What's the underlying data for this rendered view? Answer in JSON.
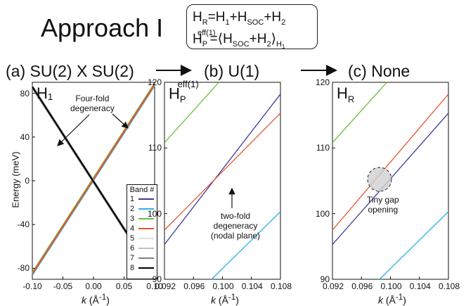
{
  "header": {
    "approach_label": "Approach I",
    "hr_equation": "H_R = H_1 + H_SOC + H_2",
    "hp_equation": "H_P^eff(1) = <H_SOC + H_2>_H1"
  },
  "flow_titles": [
    "(a) SU(2) X SU(2)",
    "(b) U(1)",
    "(c) None"
  ],
  "panels": {
    "a": {
      "label": "H₁",
      "annotation": "Four-fold\ndegeneracy",
      "ylabel": "Energy (meV)",
      "xlabel": "k (Å⁻¹)"
    },
    "b": {
      "label": "HPeff(1)",
      "annotation": "two-fold\ndegeneracy\n(nodal plane)",
      "xlabel": "k (Å⁻¹)"
    },
    "c": {
      "label": "HR",
      "annotation": "Tiny gap\nopening",
      "xlabel": "k (Å⁻¹)"
    }
  },
  "legend": {
    "title": "Band #",
    "entries": [
      "1",
      "2",
      "3",
      "4",
      "5",
      "6",
      "7",
      "8"
    ],
    "colors": [
      "#3b3b9e",
      "#2bb3e6",
      "#6cbf3a",
      "#e8552e",
      "#e0e0e0",
      "#c0c0c0",
      "#808080",
      "#000000"
    ]
  },
  "chart_data": [
    {
      "type": "line",
      "panel": "a",
      "xlabel": "k (Å⁻¹)",
      "ylabel": "Energy (meV)",
      "xlim": [
        -0.1,
        0.1
      ],
      "ylim": [
        -90,
        90
      ],
      "xticks": [
        "-0.10",
        "-0.05",
        "0.00",
        "0.05",
        "0.10"
      ],
      "yticks": [
        "-80",
        "-40",
        "0",
        "40",
        "80"
      ],
      "series": [
        {
          "name": "1",
          "x": [
            -0.1,
            0.1
          ],
          "y": [
            -85,
            88
          ]
        },
        {
          "name": "2",
          "x": [
            -0.1,
            0.1
          ],
          "y": [
            -86,
            87
          ]
        },
        {
          "name": "3",
          "x": [
            -0.1,
            0.1
          ],
          "y": [
            -84,
            89
          ]
        },
        {
          "name": "4",
          "x": [
            -0.1,
            0.1
          ],
          "y": [
            -85,
            88
          ]
        },
        {
          "name": "5",
          "x": [
            -0.1,
            0.1
          ],
          "y": [
            86,
            -87
          ]
        },
        {
          "name": "6",
          "x": [
            -0.1,
            0.1
          ],
          "y": [
            87,
            -86
          ]
        },
        {
          "name": "7",
          "x": [
            -0.1,
            0.1
          ],
          "y": [
            85,
            -88
          ]
        },
        {
          "name": "8",
          "x": [
            -0.1,
            0.1
          ],
          "y": [
            86,
            -87
          ]
        }
      ]
    },
    {
      "type": "line",
      "panel": "b",
      "xlabel": "k (Å⁻¹)",
      "xlim": [
        0.092,
        0.108
      ],
      "ylim": [
        90,
        120
      ],
      "xticks": [
        "0.092",
        "0.096",
        "0.100",
        "0.104",
        "0.108"
      ],
      "yticks": [
        "90",
        "100",
        "110",
        "120"
      ],
      "series": [
        {
          "name": "1",
          "x": [
            0.092,
            0.108
          ],
          "y": [
            95.3,
            118.2
          ]
        },
        {
          "name": "2",
          "x": [
            0.0985,
            0.108
          ],
          "y": [
            90,
            100.3
          ]
        },
        {
          "name": "3",
          "x": [
            0.092,
            0.0995
          ],
          "y": [
            110.8,
            120
          ]
        },
        {
          "name": "4",
          "x": [
            0.092,
            0.108
          ],
          "y": [
            97.5,
            115.3
          ]
        }
      ]
    },
    {
      "type": "line",
      "panel": "c",
      "xlabel": "k (Å⁻¹)",
      "xlim": [
        0.092,
        0.108
      ],
      "ylim": [
        90,
        120
      ],
      "xticks": [
        "0.092",
        "0.096",
        "0.100",
        "0.104",
        "0.108"
      ],
      "yticks": [
        "90",
        "100",
        "110",
        "120"
      ],
      "series": [
        {
          "name": "1",
          "x": [
            0.092,
            0.108
          ],
          "y": [
            95.3,
            115.3
          ]
        },
        {
          "name": "2",
          "x": [
            0.0985,
            0.108
          ],
          "y": [
            90,
            100.3
          ]
        },
        {
          "name": "3",
          "x": [
            0.092,
            0.0995
          ],
          "y": [
            110.8,
            120
          ]
        },
        {
          "name": "4",
          "x": [
            0.092,
            0.108
          ],
          "y": [
            97.5,
            118.2
          ]
        }
      ]
    }
  ]
}
